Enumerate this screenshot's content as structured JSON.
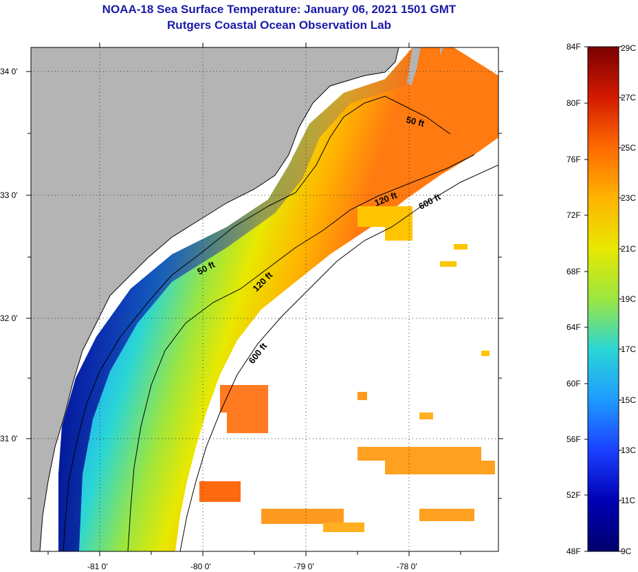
{
  "title": {
    "line1": "NOAA-18 Sea Surface Temperature:  January 06, 2021 1501 GMT",
    "line2": "Rutgers Coastal Ocean Observation Lab"
  },
  "map": {
    "lat_labels": [
      "34 0'",
      "33 0'",
      "32 0'",
      "31 0'"
    ],
    "lon_labels": [
      "-81 0'",
      "-80 0'",
      "-79 0'",
      "-78 0'"
    ],
    "contour_labels": [
      "50 ft",
      "120 ft",
      "600 ft",
      "50 ft",
      "120 ft",
      "600 ft"
    ],
    "colors": {
      "land": "#b4b4b4",
      "cloud": "#ffffff"
    }
  },
  "colorbar": {
    "f_labels": [
      "84F",
      "80F",
      "76F",
      "72F",
      "68F",
      "64F",
      "60F",
      "56F",
      "52F",
      "48F"
    ],
    "c_labels": [
      "29C",
      "27C",
      "25C",
      "23C",
      "21C",
      "19C",
      "17C",
      "15C",
      "13C",
      "11C",
      "9C"
    ],
    "colors": [
      "#7a0000",
      "#d41a00",
      "#ff6a00",
      "#ffb400",
      "#e8e800",
      "#9be640",
      "#2ad6d6",
      "#1f9bff",
      "#1a40ff",
      "#0000b4",
      "#00006e"
    ]
  }
}
